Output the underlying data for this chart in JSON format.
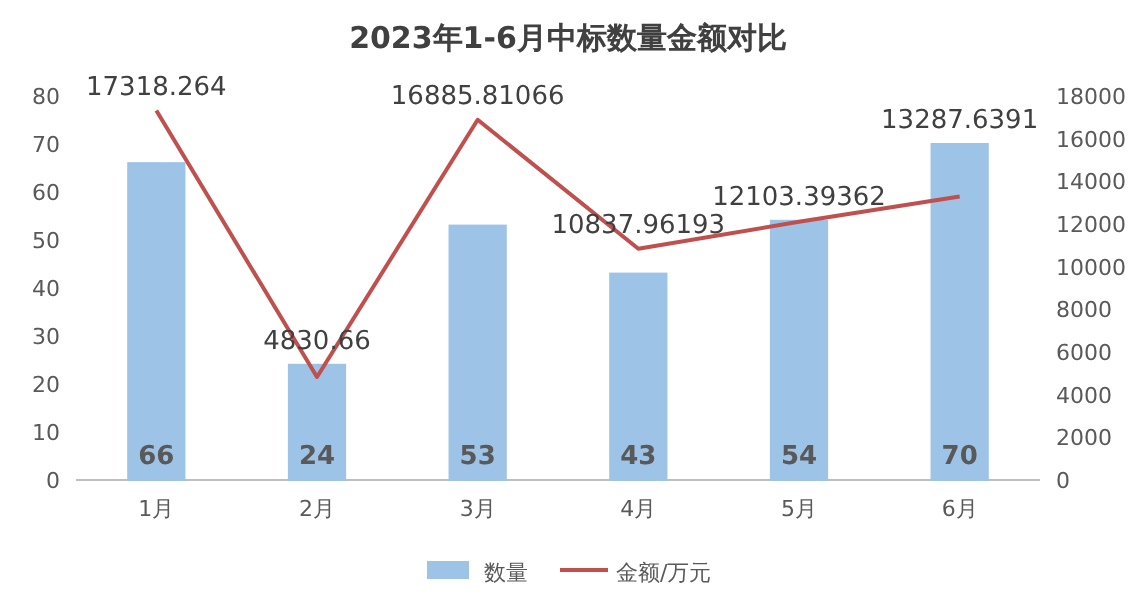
{
  "chart_data": {
    "type": "bar",
    "title": "2023年1-6月中标数量金额对比",
    "categories": [
      "1月",
      "2月",
      "3月",
      "4月",
      "5月",
      "6月"
    ],
    "series": [
      {
        "name": "数量",
        "color": "#9dc3e6",
        "values": [
          66,
          24,
          53,
          43,
          54,
          70
        ]
      },
      {
        "name": "金额/万元",
        "type": "line",
        "axis": "y2",
        "color": "#c0504d",
        "values": [
          17318.264,
          4830.66,
          16885.81066,
          10837.96193,
          12103.39362,
          13287.6391
        ]
      }
    ],
    "ylim": [
      0,
      80
    ],
    "yticks": [
      0,
      10,
      20,
      30,
      40,
      50,
      60,
      70,
      80
    ],
    "y2lim": [
      0,
      18000
    ],
    "y2ticks": [
      0,
      2000,
      4000,
      6000,
      8000,
      10000,
      12000,
      14000,
      16000,
      18000
    ],
    "data_labels": true,
    "legend": "bottom",
    "marker": "none",
    "line_style": "solid"
  }
}
